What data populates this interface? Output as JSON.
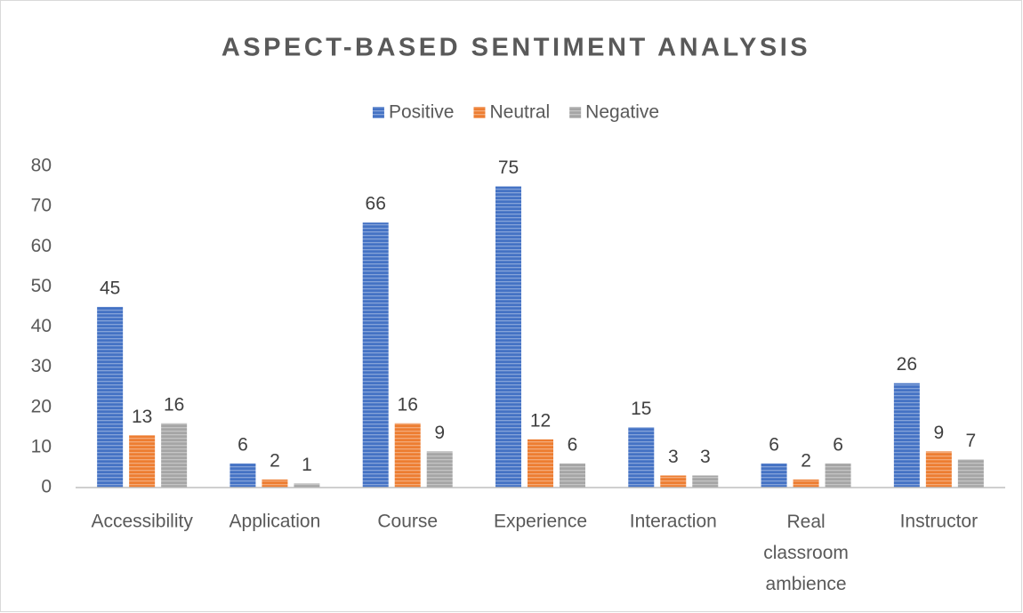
{
  "chart_data": {
    "type": "bar",
    "title": "ASPECT-BASED SENTIMENT ANALYSIS",
    "categories": [
      "Accessibility",
      "Application",
      "Course",
      "Experience",
      "Interaction",
      "Real classroom ambience",
      "Instructor"
    ],
    "series": [
      {
        "name": "Positive",
        "color": "#4472c4",
        "values": [
          45,
          6,
          66,
          75,
          15,
          6,
          26
        ]
      },
      {
        "name": "Neutral",
        "color": "#ed7d31",
        "values": [
          13,
          2,
          16,
          12,
          3,
          2,
          9
        ]
      },
      {
        "name": "Negative",
        "color": "#a5a5a5",
        "values": [
          16,
          1,
          9,
          6,
          3,
          6,
          7
        ]
      }
    ],
    "ylim": [
      0,
      80
    ],
    "yticks": [
      0,
      10,
      20,
      30,
      40,
      50,
      60,
      70,
      80
    ],
    "grid": false,
    "legend": "top"
  }
}
